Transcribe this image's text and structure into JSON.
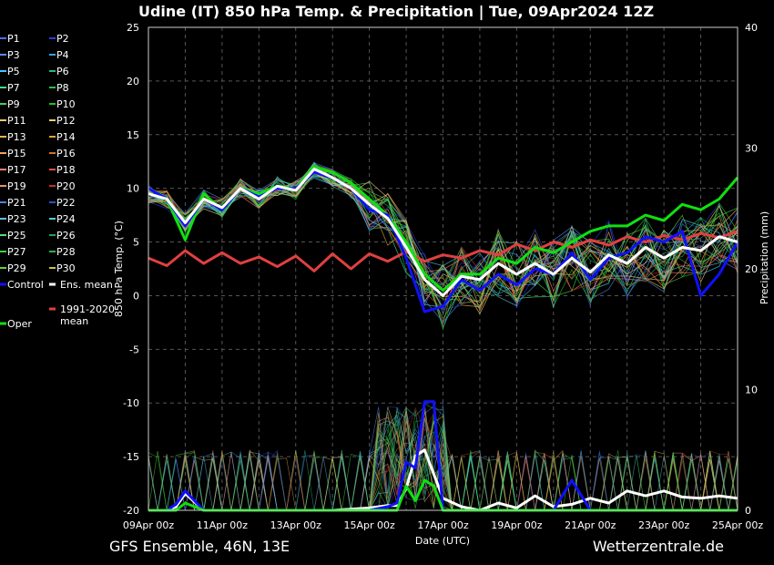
{
  "title": "Udine  (IT)  850 hPa Temp. & Precipitation | Tue, 09Apr2024 12Z",
  "footer_left": "GFS Ensemble, 46N, 13E",
  "footer_right": "Wetterzentrale.de",
  "chart_data": {
    "type": "line",
    "xlabel": "Date (UTC)",
    "ylabel": "850 hPa Temp. (°C)",
    "y2label": "Precipitation (mm)",
    "ylim": [
      -20,
      25
    ],
    "y2lim": [
      0,
      40
    ],
    "xlim": [
      0,
      16
    ],
    "grid": true,
    "x_ticks": [
      {
        "x": 0,
        "label": "09Apr 00z"
      },
      {
        "x": 2,
        "label": "11Apr 00z"
      },
      {
        "x": 4,
        "label": "13Apr 00z"
      },
      {
        "x": 6,
        "label": "15Apr 00z"
      },
      {
        "x": 8,
        "label": "17Apr 00z"
      },
      {
        "x": 10,
        "label": "19Apr 00z"
      },
      {
        "x": 12,
        "label": "21Apr 00z"
      },
      {
        "x": 14,
        "label": "23Apr 00z"
      },
      {
        "x": 16,
        "label": "25Apr 00z"
      }
    ],
    "y_ticks": [
      25,
      20,
      15,
      10,
      5,
      0,
      -5,
      -10,
      -15,
      -20
    ],
    "y2_ticks": [
      40,
      30,
      20,
      10,
      0
    ],
    "legend": [
      {
        "label": "P1",
        "color": "#4a6cff"
      },
      {
        "label": "P2",
        "color": "#2a3cd8"
      },
      {
        "label": "P3",
        "color": "#5a8cff"
      },
      {
        "label": "P4",
        "color": "#3aa0e0"
      },
      {
        "label": "P5",
        "color": "#40c8ff"
      },
      {
        "label": "P6",
        "color": "#20b890"
      },
      {
        "label": "P7",
        "color": "#40e080"
      },
      {
        "label": "P8",
        "color": "#30c040"
      },
      {
        "label": "P9",
        "color": "#40d060"
      },
      {
        "label": "P10",
        "color": "#20c020"
      },
      {
        "label": "P11",
        "color": "#f0c870"
      },
      {
        "label": "P12",
        "color": "#e8d070"
      },
      {
        "label": "P13",
        "color": "#f0b060"
      },
      {
        "label": "P14",
        "color": "#e0a040"
      },
      {
        "label": "P15",
        "color": "#f0a060"
      },
      {
        "label": "P16",
        "color": "#d07030"
      },
      {
        "label": "P17",
        "color": "#f08070"
      },
      {
        "label": "P18",
        "color": "#e05040"
      },
      {
        "label": "P19",
        "color": "#f09060"
      },
      {
        "label": "P20",
        "color": "#c03020"
      },
      {
        "label": "P21",
        "color": "#5080e0"
      },
      {
        "label": "P22",
        "color": "#3050c0"
      },
      {
        "label": "P23",
        "color": "#60c0e0"
      },
      {
        "label": "P24",
        "color": "#50d0d0"
      },
      {
        "label": "P25",
        "color": "#50e070"
      },
      {
        "label": "P26",
        "color": "#20a060"
      },
      {
        "label": "P27",
        "color": "#40d040"
      },
      {
        "label": "P28",
        "color": "#30b050"
      },
      {
        "label": "P29",
        "color": "#60d040"
      },
      {
        "label": "P30",
        "color": "#d0c040"
      },
      {
        "label": "Control",
        "color": "#1010ff"
      },
      {
        "label": "Ens. mean",
        "color": "#ffffff"
      },
      {
        "label": "1991-2020 mean",
        "color": "#e04040"
      },
      {
        "label": "Oper",
        "color": "#10e010"
      }
    ],
    "temp_series": [
      {
        "name": "Ens. mean",
        "color": "#ffffff",
        "x": [
          0,
          0.5,
          1,
          1.5,
          2,
          2.5,
          3,
          3.5,
          4,
          4.5,
          5,
          5.5,
          6,
          6.5,
          7,
          7.5,
          8,
          8.5,
          9,
          9.5,
          10,
          10.5,
          11,
          11.5,
          12,
          12.5,
          13,
          13.5,
          14,
          14.5,
          15,
          15.5,
          16
        ],
        "values": [
          9.5,
          9,
          6.8,
          9,
          8.2,
          10,
          9,
          10.2,
          9.8,
          11.8,
          11,
          10,
          8.5,
          7.2,
          4.5,
          1.5,
          0,
          1.8,
          1.5,
          3,
          2,
          3,
          2,
          3.5,
          2.2,
          3.8,
          3,
          4.5,
          3.5,
          4.5,
          4.2,
          5.5,
          5
        ]
      },
      {
        "name": "Control",
        "color": "#1010ff",
        "x": [
          0,
          0.5,
          1,
          1.5,
          2,
          2.5,
          3,
          3.5,
          4,
          4.5,
          5,
          5.5,
          6,
          6.5,
          7,
          7.5,
          8,
          8.5,
          9,
          9.5,
          10,
          10.5,
          11,
          11.5,
          12,
          12.5,
          13,
          13.5,
          14,
          14.5,
          15,
          15.5,
          16
        ],
        "values": [
          10,
          9,
          6.5,
          9,
          8,
          10,
          9.2,
          10,
          10,
          11.5,
          11,
          10,
          8,
          7.5,
          3.5,
          -1.5,
          -1,
          1.5,
          0.5,
          2,
          1,
          2.5,
          2,
          4,
          1.5,
          3.5,
          4,
          5.5,
          5,
          6,
          0,
          2,
          5
        ]
      },
      {
        "name": "Oper",
        "color": "#10e010",
        "x": [
          0,
          0.5,
          1,
          1.5,
          2,
          2.5,
          3,
          3.5,
          4,
          4.5,
          5,
          5.5,
          6,
          6.5,
          7,
          7.5,
          8,
          8.5,
          9,
          9.5,
          10,
          10.5,
          11,
          11.5,
          12,
          12.5,
          13,
          13.5,
          14,
          14.5,
          15,
          15.5,
          16
        ],
        "values": [
          10,
          9,
          5.2,
          9.5,
          8,
          10,
          9.5,
          10.2,
          10,
          12,
          11.5,
          10.5,
          9,
          7.5,
          5,
          2,
          0.5,
          2,
          2,
          3.5,
          3,
          4.5,
          4,
          5,
          6,
          6.5,
          6.5,
          7.5,
          7,
          8.5,
          8,
          9,
          11
        ]
      },
      {
        "name": "1991-2020 mean",
        "color": "#e04040",
        "x": [
          0,
          0.5,
          1,
          1.5,
          2,
          2.5,
          3,
          3.5,
          4,
          4.5,
          5,
          5.5,
          6,
          6.5,
          7,
          7.5,
          8,
          8.5,
          9,
          9.5,
          10,
          10.5,
          11,
          11.5,
          12,
          12.5,
          13,
          13.5,
          14,
          14.5,
          15,
          15.5,
          16
        ],
        "values": [
          3.5,
          2.8,
          4.2,
          3,
          4,
          3,
          3.6,
          2.7,
          3.7,
          2.3,
          3.9,
          2.5,
          3.9,
          3.2,
          4.1,
          3.2,
          3.8,
          3.5,
          4.2,
          3.8,
          4.8,
          4.2,
          5,
          4.5,
          5.2,
          4.7,
          5.5,
          5,
          5.6,
          5.2,
          5.8,
          5.4,
          6
        ]
      }
    ],
    "precip_series": [
      {
        "name": "Ens. mean",
        "color": "#ffffff",
        "x": [
          0,
          0.5,
          0.75,
          1,
          1.5,
          2,
          3,
          4,
          5,
          6,
          6.5,
          6.75,
          7,
          7.25,
          7.5,
          7.75,
          8,
          8.5,
          9,
          9.5,
          10,
          10.5,
          11,
          11.5,
          12,
          12.5,
          13,
          13.5,
          14,
          14.5,
          15,
          15.5,
          16
        ],
        "values": [
          0,
          0,
          0.3,
          1.4,
          0,
          0,
          0,
          0,
          0,
          0.2,
          0.4,
          0.4,
          1.8,
          4.5,
          5,
          3,
          1,
          0.3,
          0,
          0.6,
          0.2,
          1.2,
          0.3,
          0.5,
          1,
          0.6,
          1.6,
          1.2,
          1.6,
          1.1,
          1,
          1.2,
          1
        ]
      },
      {
        "name": "Control",
        "color": "#1010ff",
        "x": [
          0,
          0.5,
          0.75,
          1,
          1.5,
          2,
          3,
          4,
          5,
          6,
          6.5,
          6.75,
          7,
          7.25,
          7.5,
          7.75,
          8,
          8.5,
          9,
          9.5,
          10,
          10.5,
          11,
          11.5,
          12,
          12.5,
          13,
          13.5,
          14,
          14.5,
          15,
          15.5,
          16
        ],
        "values": [
          0,
          0,
          0.5,
          1.6,
          0,
          0,
          0,
          0,
          0,
          0,
          0.3,
          0.6,
          4,
          3.5,
          9,
          9,
          0,
          0,
          0,
          0,
          0,
          0,
          0,
          2.5,
          0,
          0,
          0,
          0,
          0,
          0,
          0,
          0,
          0
        ]
      },
      {
        "name": "Oper",
        "color": "#10e010",
        "x": [
          0,
          0.5,
          0.75,
          1,
          1.5,
          2,
          3,
          4,
          5,
          6,
          6.5,
          6.75,
          7,
          7.25,
          7.5,
          7.75,
          8,
          8.5,
          9,
          9.5,
          10,
          10.5,
          11,
          11.5,
          12,
          12.5,
          13,
          13.5,
          14,
          14.5,
          15,
          15.5,
          16
        ],
        "values": [
          0,
          0,
          0,
          0.6,
          0,
          0,
          0,
          0,
          0,
          0,
          0,
          0,
          2,
          0.8,
          2.5,
          2,
          0,
          0,
          0,
          0,
          0,
          0,
          0,
          0,
          0,
          0,
          0,
          0,
          0,
          0,
          0,
          0,
          0
        ]
      }
    ]
  }
}
